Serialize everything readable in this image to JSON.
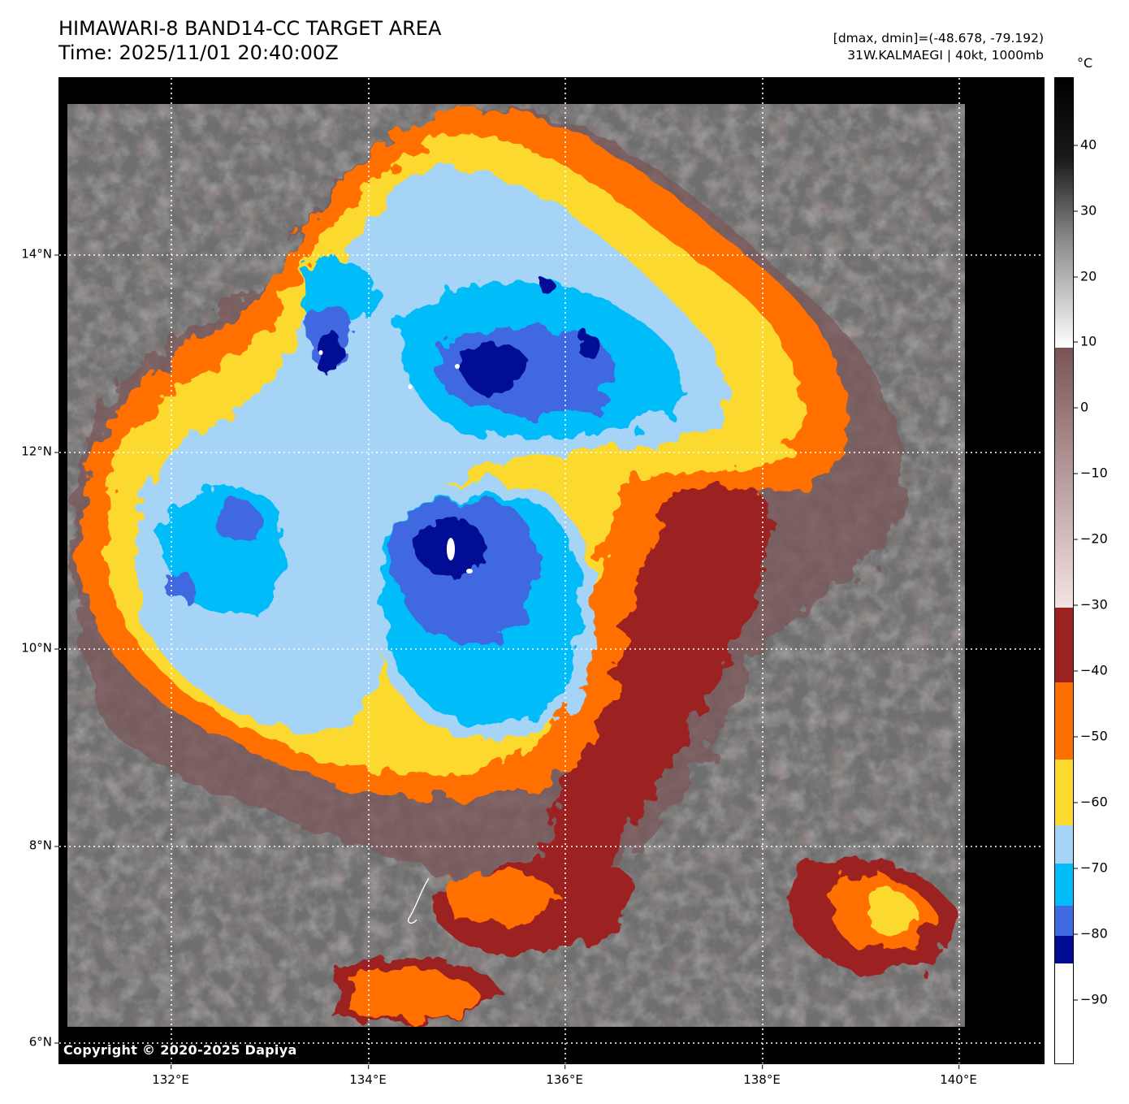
{
  "title": {
    "line1": "HIMAWARI-8 BAND14-CC TARGET AREA",
    "line2": "Time: 2025/11/01 20:40:00Z"
  },
  "meta": {
    "range": "[dmax, dmin]=(-48.678, -79.192)",
    "storm": "31W.KALMAEGI | 40kt, 1000mb"
  },
  "map": {
    "lat_labels": [
      "14°N",
      "12°N",
      "10°N",
      "8°N",
      "6°N"
    ],
    "lon_labels": [
      "132°E",
      "134°E",
      "136°E",
      "138°E",
      "140°E"
    ],
    "lat_range": [
      5.9,
      15.9
    ],
    "lon_range": [
      130.87,
      140.88
    ],
    "storm_center": {
      "lon": 134.8,
      "lat": 11.0
    },
    "copyright": "Copyright © 2020-2025 Dapiya"
  },
  "colorbar": {
    "unit": "°C",
    "ticks": [
      "40",
      "30",
      "20",
      "10",
      "0",
      "−10",
      "−20",
      "−30",
      "−40",
      "−50",
      "−60",
      "−70",
      "−80",
      "−90"
    ],
    "range": [
      -100,
      50
    ],
    "bands": [
      {
        "from": 10,
        "to": 50,
        "color": "grayscale",
        "from_color": "#ffffff",
        "to_color": "#000000"
      },
      {
        "from": -30,
        "to": 9,
        "color": "pink-brown",
        "from_color": "#f2dfe0",
        "to_color": "#7a5455"
      },
      {
        "from": -41,
        "to": -30,
        "color": "#9c2121"
      },
      {
        "from": -53,
        "to": -41,
        "color": "#ff6f00"
      },
      {
        "from": -63,
        "to": -53,
        "color": "#fbd92e"
      },
      {
        "from": -68,
        "to": -63,
        "color": "#a6d4f7"
      },
      {
        "from": -78,
        "to": -68,
        "color": "#00bcf8"
      },
      {
        "from": -83,
        "to": -78,
        "color": "#4169e1"
      },
      {
        "from": -87,
        "to": -83,
        "color": "#000b94"
      },
      {
        "from": -100,
        "to": -87,
        "color": "#ffffff"
      }
    ]
  }
}
